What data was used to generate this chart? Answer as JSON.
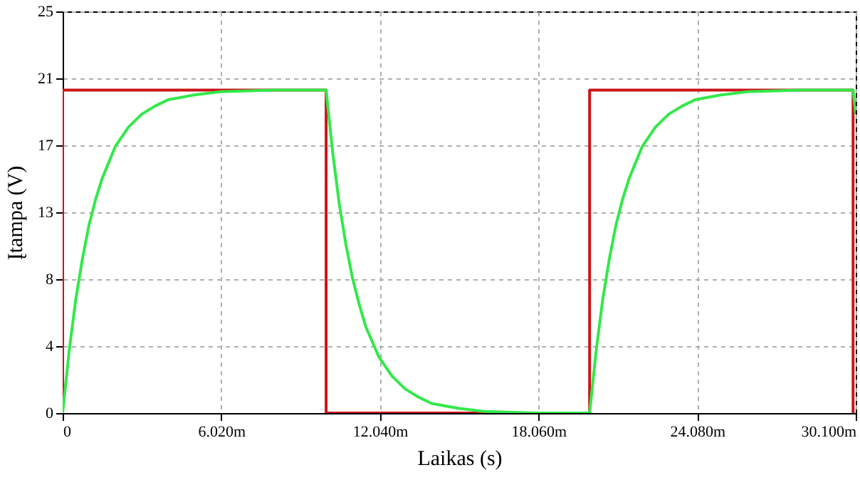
{
  "chart_data": {
    "type": "line",
    "xlabel": "Laikas (s)",
    "ylabel": "Įtampa (V)",
    "grid": true,
    "line_style": "solid",
    "xlim": [
      0,
      30.1
    ],
    "ylim": [
      0,
      25
    ],
    "xticks": [
      0,
      {
        "value": 6.02,
        "label": "6.020m"
      },
      {
        "value": 12.04,
        "label": "12.040m"
      },
      {
        "value": 18.06,
        "label": "18.060m"
      },
      {
        "value": 24.08,
        "label": "24.080m"
      },
      {
        "value": 30.1,
        "label": "30.100m"
      }
    ],
    "yticks": [
      0,
      {
        "value": 4.1667,
        "label": "4"
      },
      {
        "value": 8.3333,
        "label": "8"
      },
      {
        "value": 12.5,
        "label": "13"
      },
      {
        "value": 16.6667,
        "label": "17"
      },
      {
        "value": 20.8333,
        "label": "21"
      },
      25
    ],
    "series": [
      {
        "color": "#cc1418",
        "x": [
          0,
          0,
          10,
          10,
          20,
          20,
          30,
          30
        ],
        "values": [
          0,
          20.1,
          20.1,
          0,
          0,
          20.1,
          20.1,
          0
        ]
      },
      {
        "color": "#33e84a",
        "x": [
          0,
          0.25,
          0.5,
          0.75,
          1,
          1.25,
          1.5,
          2,
          2.5,
          3,
          3.5,
          4,
          5,
          6,
          8,
          10,
          10.25,
          10.5,
          10.75,
          11,
          11.25,
          11.5,
          12,
          12.5,
          13,
          13.5,
          14,
          15,
          16,
          18,
          20,
          20.25,
          20.5,
          20.75,
          21,
          21.25,
          21.5,
          22,
          22.5,
          23,
          23.5,
          24,
          25,
          26,
          28,
          30,
          30.1
        ],
        "values": [
          0,
          3.9,
          7.1,
          9.6,
          11.7,
          13.3,
          14.6,
          16.6,
          17.8,
          18.6,
          19.1,
          19.5,
          19.8,
          20.0,
          20.1,
          20.1,
          16.2,
          13.0,
          10.5,
          8.4,
          6.8,
          5.4,
          3.5,
          2.3,
          1.5,
          1.0,
          0.6,
          0.3,
          0.1,
          0,
          0,
          3.9,
          7.1,
          9.6,
          11.7,
          13.3,
          14.6,
          16.6,
          17.8,
          18.6,
          19.1,
          19.5,
          19.8,
          20.0,
          20.1,
          20.1,
          18.6
        ]
      }
    ]
  }
}
